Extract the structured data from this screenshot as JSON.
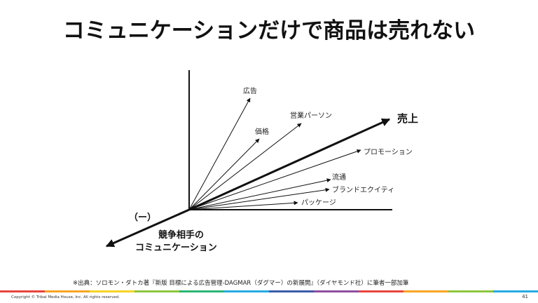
{
  "title": "コミュニケーションだけで商品は売れない",
  "diagram": {
    "vectors": [
      {
        "id": "kokoku",
        "label": "広告"
      },
      {
        "id": "eigyo",
        "label": "営業パーソン"
      },
      {
        "id": "kakaku",
        "label": "価格"
      },
      {
        "id": "uriage",
        "label": "売上"
      },
      {
        "id": "promotion",
        "label": "プロモーション"
      },
      {
        "id": "ryutsu",
        "label": "流通"
      },
      {
        "id": "brand",
        "label": "ブランドエクイティ"
      },
      {
        "id": "package",
        "label": "パッケージ"
      }
    ],
    "minus_label": "（ー）",
    "competitor_line1": "競争相手の",
    "competitor_line2": "コミュニケーション"
  },
  "source": "※出典：ソロモン・ダトカ著『新版 目標による広告管理-DAGMAR（ダグマー）の新展開』（ダイヤモンド社）に筆者一部加筆",
  "footer": {
    "copyright": "Copyright © Tribal Media House, Inc. All rights reserved.",
    "page_number": "41",
    "bar_colors": [
      "#e8453c",
      "#f6a623",
      "#f5d423",
      "#8cc63f",
      "#2bb673",
      "#27aae1",
      "#3b5ba9",
      "#8e4ea0",
      "#e8453c",
      "#f6a623",
      "#8cc63f",
      "#27aae1"
    ]
  }
}
